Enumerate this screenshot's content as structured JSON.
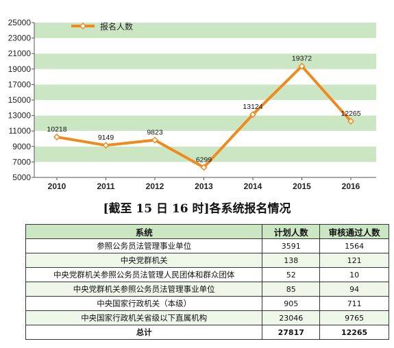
{
  "chart_data": {
    "type": "line",
    "categories": [
      "2010",
      "2011",
      "2012",
      "2013",
      "2014",
      "2015",
      "2016"
    ],
    "series": [
      {
        "name": "报名人数",
        "values": [
          10218,
          9149,
          9823,
          6299,
          13124,
          19372,
          12265
        ]
      }
    ],
    "ylim": [
      5000,
      25000
    ],
    "yticks": [
      5000,
      7000,
      9000,
      11000,
      13000,
      15000,
      17000,
      19000,
      21000,
      23000,
      25000
    ],
    "legend_position": "top-left",
    "line_color": "#f08a1e",
    "band_color": "#cbe6c3"
  },
  "subtitle": "[截至 15 日 16 时]各系统报名情况",
  "table": {
    "headers": [
      "系统",
      "计划人数",
      "审核通过人数"
    ],
    "rows": [
      [
        "参照公务员法管理事业单位",
        "3591",
        "1564"
      ],
      [
        "中央党群机关",
        "138",
        "121"
      ],
      [
        "中央党群机关参照公务员法管理人民团体和群众团体",
        "52",
        "10"
      ],
      [
        "中央党群机关参照公务员法管理事业单位",
        "85",
        "94"
      ],
      [
        "中央国家行政机关（本级）",
        "905",
        "711"
      ],
      [
        "中央国家行政机关省级以下直属机构",
        "23046",
        "9765"
      ]
    ],
    "total": [
      "总计",
      "27817",
      "12265"
    ]
  }
}
